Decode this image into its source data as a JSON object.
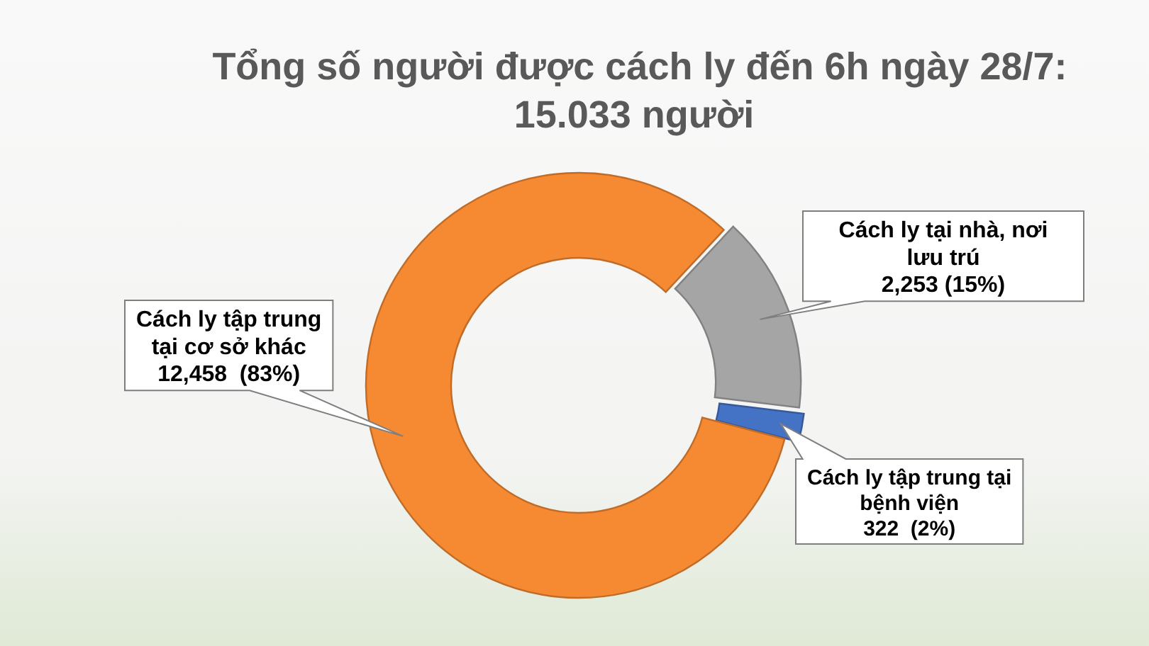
{
  "chart_data": {
    "type": "donut",
    "title": "Tổng số người được cách ly đến 6h ngày 28/7:",
    "subtitle": "15.033 người",
    "categories": [
      "Cách ly tại nhà, nơi lưu trú",
      "Cách ly tập trung tại bệnh viện",
      "Cách ly tập trung tại cơ sở khác"
    ],
    "values": [
      2253,
      322,
      12458
    ],
    "colors": [
      "#a5a5a5",
      "#4472c4",
      "#f68a33"
    ],
    "value_labels": [
      "2,253 (15%)",
      "322  (2%)",
      "12,458  (83%)"
    ]
  }
}
